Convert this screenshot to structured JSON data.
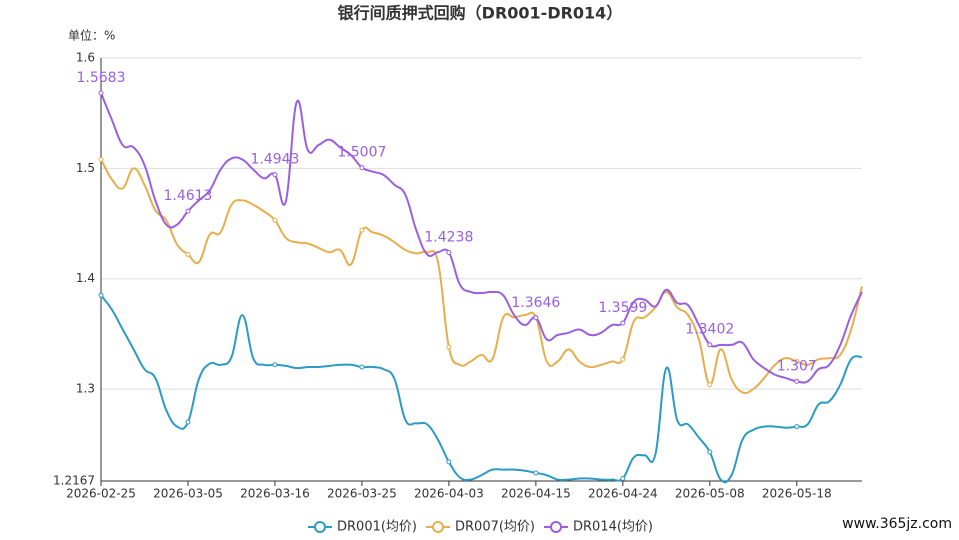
{
  "chart_data": {
    "type": "line",
    "title": "银行间质押式回购（DR001-DR014）",
    "y_label": "单位：%",
    "watermark": "www.365jz.com",
    "categories": [
      "2026-02-25",
      null,
      null,
      null,
      null,
      null,
      null,
      null,
      "2026-03-05",
      null,
      null,
      null,
      null,
      null,
      null,
      null,
      "2026-03-16",
      null,
      null,
      null,
      null,
      null,
      null,
      null,
      "2026-03-25",
      null,
      null,
      null,
      null,
      null,
      null,
      null,
      "2026-04-03",
      null,
      null,
      null,
      null,
      null,
      null,
      null,
      "2026-04-15",
      null,
      null,
      null,
      null,
      null,
      null,
      null,
      "2026-04-24",
      null,
      null,
      null,
      null,
      null,
      null,
      null,
      "2026-05-08",
      null,
      null,
      null,
      null,
      null,
      null,
      null,
      "2026-05-18",
      null,
      null,
      null,
      null,
      null,
      null
    ],
    "series": [
      {
        "name": "DR001(均价)",
        "color": "#2b9bc3",
        "values": [
          1.385,
          1.372,
          1.354,
          1.336,
          1.318,
          1.31,
          1.281,
          1.266,
          1.27,
          1.309,
          1.323,
          1.322,
          1.329,
          1.367,
          1.328,
          1.322,
          1.322,
          1.321,
          1.319,
          1.32,
          1.32,
          1.321,
          1.322,
          1.322,
          1.32,
          1.32,
          1.318,
          1.309,
          1.272,
          1.269,
          1.268,
          1.254,
          1.234,
          1.22,
          1.218,
          1.222,
          1.227,
          1.227,
          1.227,
          1.226,
          1.224,
          1.222,
          1.218,
          1.218,
          1.219,
          1.219,
          1.218,
          1.218,
          1.219,
          1.238,
          1.24,
          1.241,
          1.319,
          1.272,
          1.268,
          1.256,
          1.243,
          1.218,
          1.222,
          1.254,
          1.263,
          1.266,
          1.266,
          1.265,
          1.266,
          1.268,
          1.286,
          1.289,
          1.304,
          1.327,
          1.329
        ]
      },
      {
        "name": "DR007(均价)",
        "color": "#e6ae4c",
        "values": [
          1.508,
          1.49,
          1.482,
          1.5,
          1.485,
          1.462,
          1.453,
          1.431,
          1.422,
          1.415,
          1.44,
          1.442,
          1.467,
          1.471,
          1.467,
          1.461,
          1.453,
          1.437,
          1.433,
          1.432,
          1.428,
          1.424,
          1.426,
          1.413,
          1.444,
          1.442,
          1.439,
          1.433,
          1.426,
          1.423,
          1.424,
          1.415,
          1.338,
          1.322,
          1.325,
          1.331,
          1.327,
          1.365,
          1.365,
          1.367,
          1.365,
          1.325,
          1.325,
          1.336,
          1.325,
          1.32,
          1.322,
          1.325,
          1.327,
          1.361,
          1.365,
          1.374,
          1.388,
          1.374,
          1.367,
          1.345,
          1.304,
          1.336,
          1.309,
          1.297,
          1.3,
          1.31,
          1.322,
          1.328,
          1.325,
          1.322,
          1.327,
          1.328,
          1.331,
          1.354,
          1.393
        ]
      },
      {
        "name": "DR014(均价)",
        "color": "#9a5fe0",
        "show_labels": true,
        "values": [
          1.5683,
          1.544,
          1.521,
          1.519,
          1.503,
          1.471,
          1.449,
          1.449,
          1.4613,
          1.471,
          1.48,
          1.499,
          1.509,
          1.508,
          1.499,
          1.491,
          1.4943,
          1.47,
          1.56,
          1.517,
          1.521,
          1.526,
          1.519,
          1.512,
          1.5007,
          1.497,
          1.494,
          1.485,
          1.476,
          1.444,
          1.422,
          1.424,
          1.4238,
          1.395,
          1.388,
          1.387,
          1.388,
          1.385,
          1.367,
          1.358,
          1.3646,
          1.345,
          1.349,
          1.351,
          1.354,
          1.349,
          1.351,
          1.358,
          1.3599,
          1.379,
          1.381,
          1.375,
          1.39,
          1.378,
          1.376,
          1.358,
          1.3402,
          1.34,
          1.34,
          1.342,
          1.327,
          1.319,
          1.313,
          1.31,
          1.307,
          1.307,
          1.318,
          1.322,
          1.34,
          1.367,
          1.388
        ]
      }
    ],
    "ylim": [
      1.2167,
      1.6
    ],
    "yticks": [
      1.2167,
      1.3,
      1.4,
      1.5,
      1.6
    ],
    "grid": true
  }
}
